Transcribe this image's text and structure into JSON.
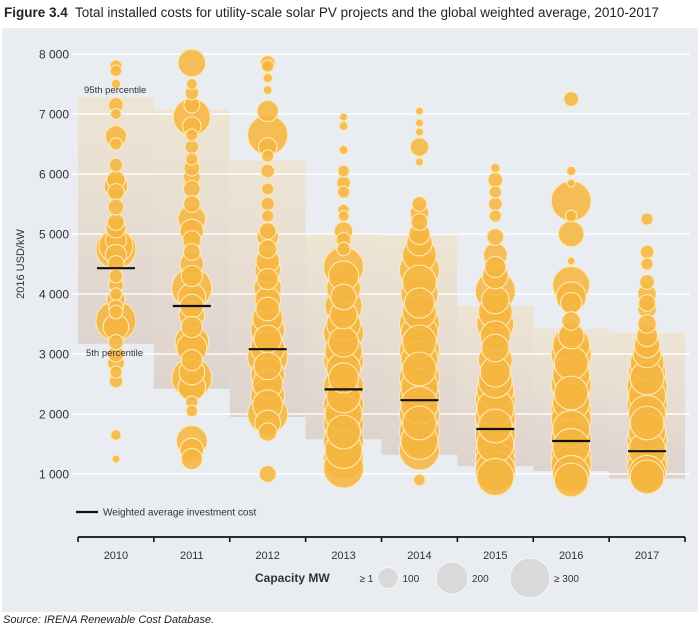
{
  "figure": {
    "label": "Figure 3.4",
    "title": "Total installed costs for utility-scale solar PV projects and the global weighted average, 2010-2017",
    "source": "Source: IRENA Renewable Cost Database."
  },
  "colors": {
    "panel_bg": "#e9ecf1",
    "bubble_fill": "#f5b640",
    "bubble_stroke": "#fde9b6",
    "band_top": "#efe3cf",
    "band_bottom": "#dccfc8",
    "avg_line": "#111111",
    "legend_circle": "#d9d9d9"
  },
  "chart_data": {
    "type": "scatter",
    "subtype": "bubble",
    "title": "Total installed costs for utility-scale solar PV projects and the global weighted average, 2010-2017",
    "xlabel": "",
    "ylabel": "2016 USD/kW",
    "ylim": [
      700,
      8000
    ],
    "yticks": [
      1000,
      2000,
      3000,
      4000,
      5000,
      6000,
      7000,
      8000
    ],
    "ytick_labels": [
      "1 000",
      "2 000",
      "3 000",
      "4 000",
      "5 000",
      "6 000",
      "7 000",
      "8 000"
    ],
    "grid": true,
    "categories": [
      "2010",
      "2011",
      "2012",
      "2013",
      "2014",
      "2015",
      "2016",
      "2017"
    ],
    "annotations": {
      "p95": "95th percentile",
      "p5": "5th percentile"
    },
    "legend": {
      "line_label": "Weighted average investment cost",
      "line_placement": "bottom-left",
      "size_title": "Capacity MW",
      "size_entries": [
        {
          "label": "≥ 1",
          "mw": 1
        },
        {
          "label": "100",
          "mw": 100
        },
        {
          "label": "200",
          "mw": 200
        },
        {
          "label": "≥ 300",
          "mw": 300
        }
      ],
      "size_placement": "bottom-center"
    },
    "weighted_average": [
      4430,
      3800,
      3080,
      2410,
      2230,
      1750,
      1550,
      1380
    ],
    "percentile_95": [
      7280,
      7080,
      6230,
      5000,
      4970,
      3800,
      3420,
      3350
    ],
    "percentile_5": [
      3170,
      2420,
      1950,
      1580,
      1320,
      1130,
      1050,
      920
    ],
    "projects": [
      {
        "year": "2010",
        "points": [
          [
            7800,
            10
          ],
          [
            7720,
            8
          ],
          [
            7500,
            3
          ],
          [
            7150,
            20
          ],
          [
            7000,
            6
          ],
          [
            6630,
            60
          ],
          [
            6500,
            10
          ],
          [
            6150,
            15
          ],
          [
            5900,
            40
          ],
          [
            5800,
            80
          ],
          [
            5700,
            30
          ],
          [
            5450,
            25
          ],
          [
            5200,
            30
          ],
          [
            5100,
            50
          ],
          [
            4900,
            60
          ],
          [
            4800,
            200
          ],
          [
            4750,
            300
          ],
          [
            4650,
            60
          ],
          [
            4500,
            30
          ],
          [
            4300,
            15
          ],
          [
            4150,
            20
          ],
          [
            4000,
            10
          ],
          [
            3900,
            40
          ],
          [
            3780,
            20
          ],
          [
            3700,
            15
          ],
          [
            3550,
            300
          ],
          [
            3450,
            100
          ],
          [
            3200,
            20
          ],
          [
            3000,
            25
          ],
          [
            2850,
            30
          ],
          [
            2700,
            10
          ],
          [
            2550,
            15
          ],
          [
            1650,
            5
          ],
          [
            1250,
            1
          ]
        ]
      },
      {
        "year": "2011",
        "points": [
          [
            7850,
            120
          ],
          [
            7500,
            6
          ],
          [
            7350,
            15
          ],
          [
            7150,
            25
          ],
          [
            6950,
            250
          ],
          [
            6800,
            40
          ],
          [
            6650,
            10
          ],
          [
            6450,
            15
          ],
          [
            6250,
            10
          ],
          [
            6100,
            25
          ],
          [
            5950,
            30
          ],
          [
            5750,
            30
          ],
          [
            5500,
            30
          ],
          [
            5250,
            120
          ],
          [
            5050,
            80
          ],
          [
            4900,
            40
          ],
          [
            4700,
            30
          ],
          [
            4500,
            80
          ],
          [
            4300,
            60
          ],
          [
            4100,
            300
          ],
          [
            3950,
            120
          ],
          [
            3800,
            80
          ],
          [
            3650,
            100
          ],
          [
            3450,
            60
          ],
          [
            3200,
            200
          ],
          [
            3100,
            150
          ],
          [
            2900,
            60
          ],
          [
            2700,
            100
          ],
          [
            2600,
            300
          ],
          [
            2450,
            120
          ],
          [
            2200,
            10
          ],
          [
            2050,
            8
          ],
          [
            1550,
            160
          ],
          [
            1400,
            80
          ],
          [
            1250,
            60
          ]
        ]
      },
      {
        "year": "2012",
        "points": [
          [
            7850,
            20
          ],
          [
            7800,
            10
          ],
          [
            7600,
            3
          ],
          [
            7400,
            2
          ],
          [
            7050,
            60
          ],
          [
            6650,
            300
          ],
          [
            6450,
            40
          ],
          [
            6300,
            10
          ],
          [
            6050,
            15
          ],
          [
            5750,
            10
          ],
          [
            5500,
            15
          ],
          [
            5300,
            10
          ],
          [
            5050,
            30
          ],
          [
            4950,
            60
          ],
          [
            4750,
            40
          ],
          [
            4550,
            80
          ],
          [
            4400,
            100
          ],
          [
            4250,
            60
          ],
          [
            4100,
            120
          ],
          [
            3900,
            100
          ],
          [
            3750,
            80
          ],
          [
            3600,
            150
          ],
          [
            3400,
            200
          ],
          [
            3250,
            120
          ],
          [
            3100,
            200
          ],
          [
            2950,
            300
          ],
          [
            2800,
            120
          ],
          [
            2650,
            200
          ],
          [
            2500,
            150
          ],
          [
            2300,
            200
          ],
          [
            2150,
            150
          ],
          [
            2000,
            300
          ],
          [
            1850,
            100
          ],
          [
            1700,
            40
          ],
          [
            1000,
            30
          ]
        ]
      },
      {
        "year": "2013",
        "points": [
          [
            6950,
            1
          ],
          [
            6800,
            2
          ],
          [
            6400,
            2
          ],
          [
            6050,
            8
          ],
          [
            5850,
            15
          ],
          [
            5700,
            10
          ],
          [
            5400,
            8
          ],
          [
            5300,
            6
          ],
          [
            5050,
            40
          ],
          [
            4900,
            20
          ],
          [
            4750,
            15
          ],
          [
            4450,
            300
          ],
          [
            4300,
            150
          ],
          [
            4100,
            200
          ],
          [
            3950,
            100
          ],
          [
            3800,
            250
          ],
          [
            3650,
            120
          ],
          [
            3500,
            200
          ],
          [
            3350,
            300
          ],
          [
            3200,
            150
          ],
          [
            3050,
            250
          ],
          [
            2900,
            300
          ],
          [
            2750,
            200
          ],
          [
            2600,
            150
          ],
          [
            2450,
            300
          ],
          [
            2300,
            200
          ],
          [
            2150,
            300
          ],
          [
            2000,
            250
          ],
          [
            1850,
            300
          ],
          [
            1700,
            200
          ],
          [
            1550,
            300
          ],
          [
            1400,
            250
          ],
          [
            1250,
            300
          ],
          [
            1100,
            300
          ]
        ]
      },
      {
        "year": "2014",
        "points": [
          [
            7050,
            1
          ],
          [
            6850,
            1
          ],
          [
            6700,
            1
          ],
          [
            6450,
            40
          ],
          [
            6200,
            1
          ],
          [
            5500,
            20
          ],
          [
            5350,
            40
          ],
          [
            5200,
            30
          ],
          [
            5000,
            60
          ],
          [
            4850,
            100
          ],
          [
            4650,
            200
          ],
          [
            4400,
            300
          ],
          [
            4200,
            200
          ],
          [
            4000,
            250
          ],
          [
            3850,
            150
          ],
          [
            3700,
            200
          ],
          [
            3500,
            300
          ],
          [
            3350,
            250
          ],
          [
            3200,
            200
          ],
          [
            3050,
            300
          ],
          [
            2900,
            250
          ],
          [
            2750,
            200
          ],
          [
            2600,
            300
          ],
          [
            2450,
            250
          ],
          [
            2300,
            300
          ],
          [
            2150,
            250
          ],
          [
            2000,
            300
          ],
          [
            1850,
            200
          ],
          [
            1700,
            300
          ],
          [
            1550,
            250
          ],
          [
            1400,
            300
          ],
          [
            900,
            8
          ]
        ]
      },
      {
        "year": "2015",
        "points": [
          [
            6100,
            3
          ],
          [
            5900,
            20
          ],
          [
            5700,
            10
          ],
          [
            5500,
            15
          ],
          [
            5300,
            10
          ],
          [
            4950,
            30
          ],
          [
            4650,
            80
          ],
          [
            4450,
            60
          ],
          [
            4300,
            100
          ],
          [
            4050,
            300
          ],
          [
            3900,
            120
          ],
          [
            3700,
            200
          ],
          [
            3500,
            250
          ],
          [
            3300,
            150
          ],
          [
            3100,
            120
          ],
          [
            2900,
            200
          ],
          [
            2700,
            150
          ],
          [
            2550,
            200
          ],
          [
            2400,
            250
          ],
          [
            2250,
            300
          ],
          [
            2100,
            250
          ],
          [
            1950,
            300
          ],
          [
            1800,
            200
          ],
          [
            1650,
            300
          ],
          [
            1500,
            250
          ],
          [
            1350,
            300
          ],
          [
            1200,
            300
          ],
          [
            1050,
            300
          ],
          [
            950,
            250
          ]
        ]
      },
      {
        "year": "2016",
        "points": [
          [
            7250,
            20
          ],
          [
            6050,
            3
          ],
          [
            5850,
            1
          ],
          [
            5550,
            300
          ],
          [
            5300,
            8
          ],
          [
            5000,
            100
          ],
          [
            4550,
            1
          ],
          [
            4150,
            250
          ],
          [
            3950,
            150
          ],
          [
            3850,
            60
          ],
          [
            3550,
            40
          ],
          [
            3300,
            100
          ],
          [
            3150,
            250
          ],
          [
            3000,
            300
          ],
          [
            2850,
            200
          ],
          [
            2650,
            250
          ],
          [
            2500,
            300
          ],
          [
            2350,
            200
          ],
          [
            2200,
            250
          ],
          [
            2050,
            300
          ],
          [
            1900,
            300
          ],
          [
            1750,
            250
          ],
          [
            1600,
            300
          ],
          [
            1450,
            250
          ],
          [
            1300,
            300
          ],
          [
            1150,
            300
          ],
          [
            1000,
            250
          ],
          [
            900,
            200
          ]
        ]
      },
      {
        "year": "2017",
        "points": [
          [
            5250,
            10
          ],
          [
            4700,
            15
          ],
          [
            4500,
            10
          ],
          [
            4200,
            20
          ],
          [
            4000,
            40
          ],
          [
            3850,
            30
          ],
          [
            3750,
            40
          ],
          [
            3500,
            40
          ],
          [
            3300,
            60
          ],
          [
            3150,
            100
          ],
          [
            3000,
            120
          ],
          [
            2850,
            200
          ],
          [
            2700,
            250
          ],
          [
            2600,
            200
          ],
          [
            2450,
            300
          ],
          [
            2300,
            250
          ],
          [
            2150,
            300
          ],
          [
            2000,
            250
          ],
          [
            1850,
            200
          ],
          [
            1700,
            250
          ],
          [
            1550,
            300
          ],
          [
            1400,
            250
          ],
          [
            1250,
            300
          ],
          [
            1100,
            300
          ],
          [
            1000,
            250
          ],
          [
            950,
            200
          ]
        ]
      }
    ]
  }
}
